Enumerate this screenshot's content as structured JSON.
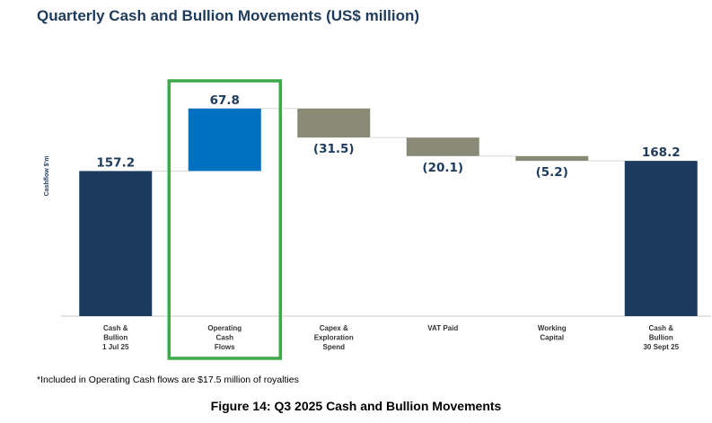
{
  "title": "Quarterly Cash and Bullion Movements (US$ million)",
  "footnote": "*Included in Operating Cash flows are $17.5 million of royalties",
  "caption": "Figure 14: Q3 2025 Cash and Bullion Movements",
  "colors": {
    "total": "#1b3a5e",
    "increase": "#0070c0",
    "decrease": "#8a8b76",
    "highlight": "#3daa4a"
  },
  "chart_data": {
    "type": "bar",
    "subtype": "waterfall",
    "ylabel": "Cashflow $'m",
    "grid": false,
    "highlighted_category": "Operating Cash Flows",
    "bars": [
      {
        "category": [
          "Cash &",
          "Bullion",
          "1 Jul 25"
        ],
        "kind": "total",
        "start": 0,
        "value": 157.2,
        "label": "157.2"
      },
      {
        "category": [
          "Operating",
          "Cash",
          "Flows"
        ],
        "kind": "increase",
        "start": 157.2,
        "value": 67.8,
        "label": "67.8"
      },
      {
        "category": [
          "Capex &",
          "Exploration",
          "Spend"
        ],
        "kind": "decrease",
        "start": 225.0,
        "value": -31.5,
        "label": "(31.5)"
      },
      {
        "category": [
          "VAT Paid"
        ],
        "kind": "decrease",
        "start": 193.5,
        "value": -20.1,
        "label": "(20.1)"
      },
      {
        "category": [
          "Working",
          "Capital"
        ],
        "kind": "decrease",
        "start": 173.4,
        "value": -5.2,
        "label": "(5.2)"
      },
      {
        "category": [
          "Cash &",
          "Bullion",
          "30 Sept 25"
        ],
        "kind": "total",
        "start": 0,
        "value": 168.2,
        "label": "168.2"
      }
    ]
  }
}
